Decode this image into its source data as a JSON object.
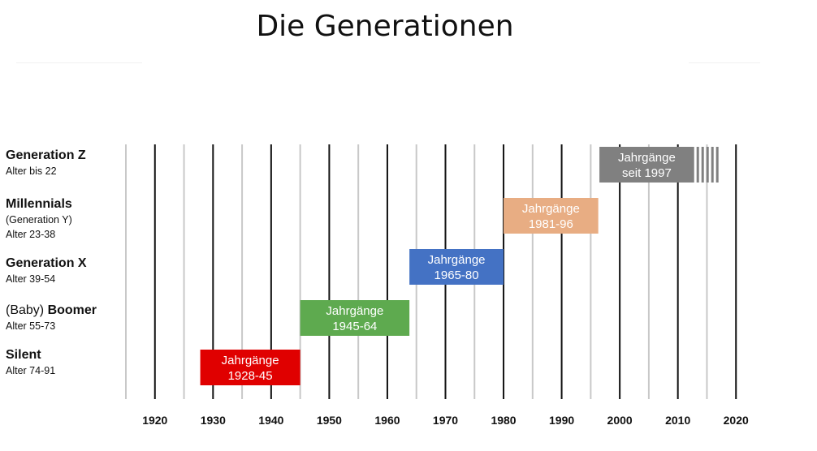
{
  "title": "Die Generationen",
  "chart_data": {
    "type": "bar",
    "subtype": "timeline",
    "x_range": [
      1915,
      2025
    ],
    "minor_gridlines": [
      1915,
      1925,
      1935,
      1945,
      1955,
      1965,
      1975,
      1985,
      1995,
      2005,
      2015
    ],
    "major_gridlines": [
      1920,
      1930,
      1940,
      1950,
      1960,
      1970,
      1980,
      1990,
      2000,
      2010,
      2020
    ],
    "x_ticks": [
      "1920",
      "1930",
      "1940",
      "1950",
      "1960",
      "1970",
      "1980",
      "1990",
      "2000",
      "2010",
      "2020"
    ],
    "tick_values": [
      1920,
      1930,
      1940,
      1950,
      1960,
      1970,
      1980,
      1990,
      2000,
      2010,
      2020
    ],
    "generations": [
      {
        "name": "Generation Z",
        "name_prefix": "",
        "sub_lines": [
          "Alter bis 22"
        ],
        "bar_label": [
          "Jahrgänge",
          "seit 1997"
        ],
        "start": 1996.5,
        "end": 2012.8,
        "color": "#808080",
        "open_ended": true
      },
      {
        "name": "Millennials",
        "name_prefix": "",
        "sub_lines": [
          "(Generation Y)",
          "Alter 23-38"
        ],
        "bar_label": [
          "Jahrgänge",
          "1981-96"
        ],
        "start": 1980,
        "end": 1996.3,
        "color": "#e8ad83"
      },
      {
        "name": "Generation X",
        "name_prefix": "",
        "sub_lines": [
          "Alter 39-54"
        ],
        "bar_label": [
          "Jahrgänge",
          "1965-80"
        ],
        "start": 1963.8,
        "end": 1980,
        "color": "#4472c4"
      },
      {
        "name": "Boomer",
        "name_prefix": "(Baby) ",
        "sub_lines": [
          "Alter 55-73"
        ],
        "bar_label": [
          "Jahrgänge",
          "1945-64"
        ],
        "start": 1945,
        "end": 1963.8,
        "color": "#5eaa4f"
      },
      {
        "name": "Silent",
        "name_prefix": "",
        "sub_lines": [
          "Alter 74-91"
        ],
        "bar_label": [
          "Jahrgänge",
          "1928-45"
        ],
        "start": 1927.8,
        "end": 1945,
        "color": "#e00000"
      }
    ]
  }
}
